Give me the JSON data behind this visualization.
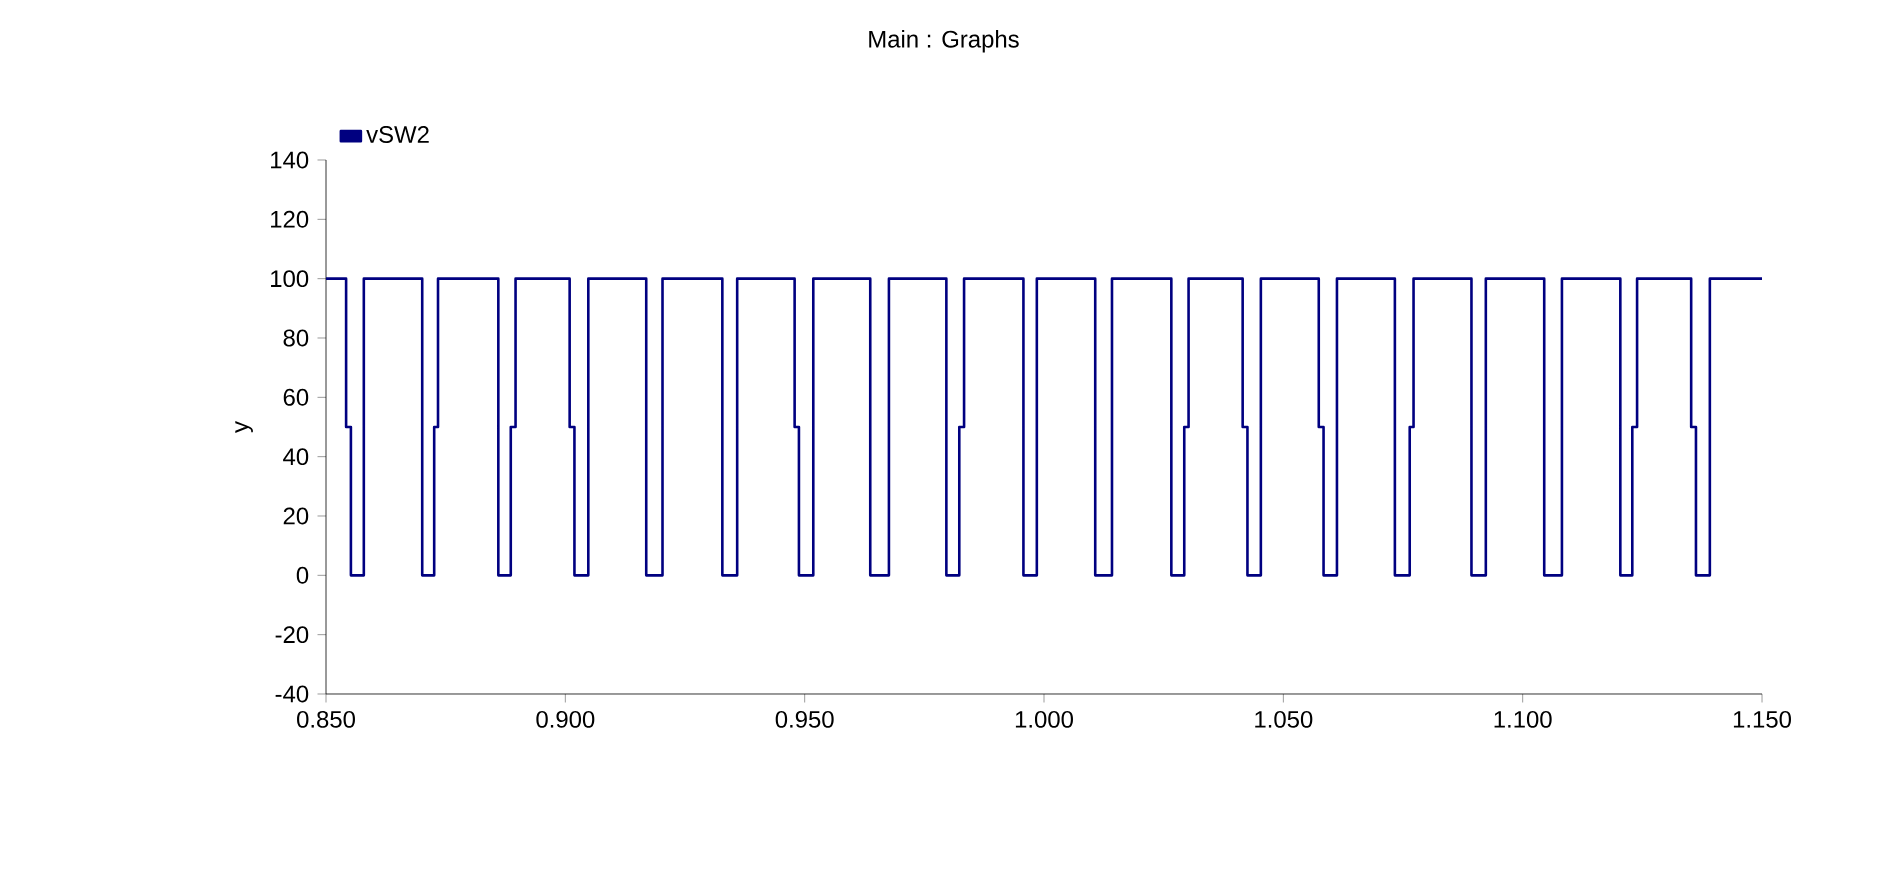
{
  "chart_data": {
    "type": "step",
    "title": "Main : Graphs",
    "ylabel": "y",
    "series": [
      {
        "name": "vSW2",
        "color": "#000080",
        "x": [
          0.85,
          0.8542,
          0.8552,
          0.8579,
          0.8701,
          0.8726,
          0.8734,
          0.886,
          0.8886,
          0.8896,
          0.9009,
          0.9019,
          0.9048,
          0.9169,
          0.9203,
          0.9328,
          0.9359,
          0.9479,
          0.9488,
          0.9518,
          0.9637,
          0.9676,
          0.9796,
          0.9823,
          0.9833,
          0.9957,
          0.9985,
          1.0107,
          1.0142,
          1.0266,
          1.0293,
          1.0302,
          1.0415,
          1.0425,
          1.0453,
          1.0574,
          1.0584,
          1.0612,
          1.0733,
          1.0764,
          1.0772,
          1.0893,
          1.0923,
          1.1045,
          1.1082,
          1.1204,
          1.1229,
          1.1239,
          1.1352,
          1.1362,
          1.1391,
          1.15
        ],
        "values": [
          100,
          50,
          0,
          100,
          0,
          50,
          100,
          0,
          50,
          100,
          50,
          0,
          100,
          0,
          100,
          0,
          100,
          50,
          0,
          100,
          0,
          100,
          0,
          50,
          100,
          0,
          100,
          0,
          100,
          0,
          50,
          100,
          50,
          0,
          100,
          50,
          0,
          100,
          0,
          50,
          100,
          0,
          100,
          0,
          100,
          0,
          50,
          100,
          50,
          0,
          100,
          100
        ]
      }
    ],
    "xlim": [
      0.85,
      1.15
    ],
    "xticks": [
      {
        "value": 0.85,
        "label": "0.850"
      },
      {
        "value": 0.9,
        "label": "0.900"
      },
      {
        "value": 0.95,
        "label": "0.950"
      },
      {
        "value": 1.0,
        "label": "1.000"
      },
      {
        "value": 1.05,
        "label": "1.050"
      },
      {
        "value": 1.1,
        "label": "1.100"
      },
      {
        "value": 1.15,
        "label": "1.150"
      }
    ],
    "ylim": [
      -40,
      140
    ],
    "yticks": [
      -40,
      -20,
      0,
      20,
      40,
      60,
      80,
      100,
      120,
      140
    ],
    "legend": "top left",
    "grid": false,
    "marker": "none",
    "line_style": "solid"
  }
}
